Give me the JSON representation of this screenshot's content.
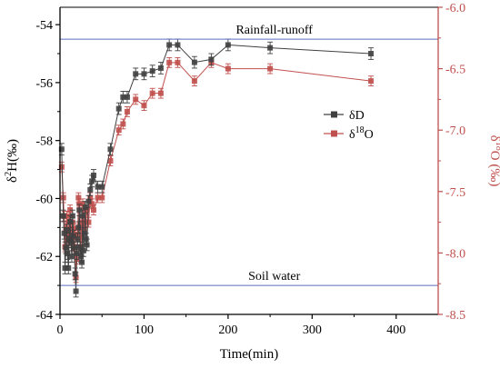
{
  "chart_data": {
    "type": "scatter",
    "title": "",
    "xlabel": "Time(min)",
    "ylabel_left": "δ²H(‰)",
    "ylabel_left_parts": {
      "base": "δ",
      "sup": "2",
      "rest": "H(‰)"
    },
    "ylabel_right": "δ¹⁸O (‰)",
    "ylabel_right_parts": {
      "base": "δ",
      "sup": "18",
      "rest": "O (‰)"
    },
    "xlim": [
      0,
      450
    ],
    "ylim_left": [
      -64,
      -53.4
    ],
    "ylim_right": [
      -8.5,
      -6.0
    ],
    "x_ticks": [
      0,
      100,
      200,
      300,
      400
    ],
    "y_left_ticks": [
      -64,
      -62,
      -60,
      -58,
      -56,
      -54
    ],
    "y_right_ticks": [
      -8.5,
      -8.0,
      -7.5,
      -7.0,
      -6.5,
      -6.0
    ],
    "x_tick_labels": [
      "0",
      "100",
      "200",
      "300",
      "400"
    ],
    "y_left_tick_labels": [
      "-64",
      "-62",
      "-60",
      "-58",
      "-56",
      "-54"
    ],
    "y_right_tick_labels": [
      "-8.5",
      "-8.0",
      "-7.5",
      "-7.0",
      "-6.5",
      "-6.0"
    ],
    "grid": false,
    "legend_position": "center-right",
    "reference_lines": [
      {
        "label": "Rainfall-runoff",
        "y_left": -54.5,
        "color": "#5b6ec4"
      },
      {
        "label": "Soil water",
        "y_left": -63.0,
        "color": "#5b6ec4"
      }
    ],
    "series": [
      {
        "name": "δD",
        "legend_parts": {
          "base": "δ",
          "rest": "D"
        },
        "axis": "left",
        "color": "#404040",
        "x": [
          2,
          4,
          5,
          6,
          7,
          8,
          9,
          10,
          11,
          12,
          13,
          14,
          15,
          16,
          17,
          18,
          19,
          20,
          21,
          22,
          23,
          24,
          25,
          26,
          27,
          28,
          29,
          30,
          31,
          32,
          34,
          36,
          38,
          40,
          45,
          50,
          60,
          70,
          75,
          80,
          90,
          100,
          110,
          120,
          130,
          140,
          160,
          180,
          200,
          250,
          370
        ],
        "y": [
          -58.3,
          -60.6,
          -61.2,
          -62.4,
          -61.7,
          -61.1,
          -61.9,
          -62.4,
          -61.4,
          -60.8,
          -61.5,
          -62.0,
          -60.6,
          -61.3,
          -61.7,
          -62.6,
          -63.2,
          -61.9,
          -61.4,
          -61.0,
          -60.4,
          -61.7,
          -62.0,
          -62.2,
          -60.6,
          -61.8,
          -61.2,
          -60.3,
          -61.4,
          -61.6,
          -60.1,
          -59.7,
          -59.4,
          -59.2,
          -59.6,
          -59.6,
          -58.3,
          -56.9,
          -56.5,
          -56.5,
          -55.7,
          -55.7,
          -55.6,
          -55.5,
          -54.7,
          -54.7,
          -55.3,
          -55.2,
          -54.7,
          -54.8,
          -55.0
        ],
        "err": [
          0.2,
          0.2,
          0.2,
          0.2,
          0.2,
          0.2,
          0.2,
          0.2,
          0.2,
          0.2,
          0.2,
          0.2,
          0.2,
          0.2,
          0.2,
          0.2,
          0.2,
          0.2,
          0.2,
          0.2,
          0.2,
          0.2,
          0.2,
          0.2,
          0.2,
          0.2,
          0.2,
          0.2,
          0.2,
          0.2,
          0.2,
          0.2,
          0.2,
          0.2,
          0.2,
          0.2,
          0.2,
          0.2,
          0.2,
          0.2,
          0.2,
          0.2,
          0.2,
          0.2,
          0.2,
          0.2,
          0.2,
          0.2,
          0.2,
          0.2,
          0.2
        ]
      },
      {
        "name": "δ18O",
        "legend_parts": {
          "base": "δ",
          "sup": "18",
          "rest": "O"
        },
        "axis": "right",
        "color": "#c0504d",
        "x": [
          2,
          4,
          5,
          6,
          7,
          8,
          9,
          10,
          11,
          12,
          13,
          14,
          15,
          16,
          17,
          18,
          19,
          20,
          21,
          22,
          23,
          24,
          25,
          26,
          27,
          28,
          29,
          30,
          31,
          32,
          34,
          36,
          38,
          40,
          45,
          50,
          60,
          70,
          75,
          80,
          90,
          100,
          110,
          120,
          130,
          140,
          160,
          180,
          200,
          250,
          370
        ],
        "y": [
          -7.3,
          -7.55,
          -7.7,
          -7.95,
          -7.8,
          -7.7,
          -7.9,
          -7.85,
          -7.75,
          -7.65,
          -7.8,
          -7.9,
          -7.75,
          -7.95,
          -7.8,
          -7.85,
          -8.2,
          -8.05,
          -7.85,
          -7.55,
          -7.6,
          -7.8,
          -7.95,
          -7.75,
          -7.6,
          -7.75,
          -7.8,
          -7.65,
          -7.75,
          -7.65,
          -7.75,
          -7.55,
          -7.6,
          -7.65,
          -7.55,
          -7.55,
          -7.25,
          -7.0,
          -6.95,
          -6.85,
          -6.75,
          -6.8,
          -6.7,
          -6.7,
          -6.45,
          -6.45,
          -6.6,
          -6.45,
          -6.5,
          -6.5,
          -6.6
        ],
        "err": [
          0.04,
          0.04,
          0.04,
          0.04,
          0.04,
          0.04,
          0.04,
          0.04,
          0.04,
          0.04,
          0.04,
          0.04,
          0.04,
          0.04,
          0.04,
          0.04,
          0.04,
          0.04,
          0.04,
          0.04,
          0.04,
          0.04,
          0.04,
          0.04,
          0.04,
          0.04,
          0.04,
          0.04,
          0.04,
          0.04,
          0.04,
          0.04,
          0.04,
          0.04,
          0.04,
          0.04,
          0.04,
          0.04,
          0.04,
          0.04,
          0.04,
          0.04,
          0.04,
          0.04,
          0.04,
          0.04,
          0.04,
          0.04,
          0.04,
          0.04,
          0.04
        ]
      }
    ],
    "colors": {
      "left_axis": "#000000",
      "right_axis": "#c0504d",
      "reference_line": "#5b6ec4"
    }
  }
}
